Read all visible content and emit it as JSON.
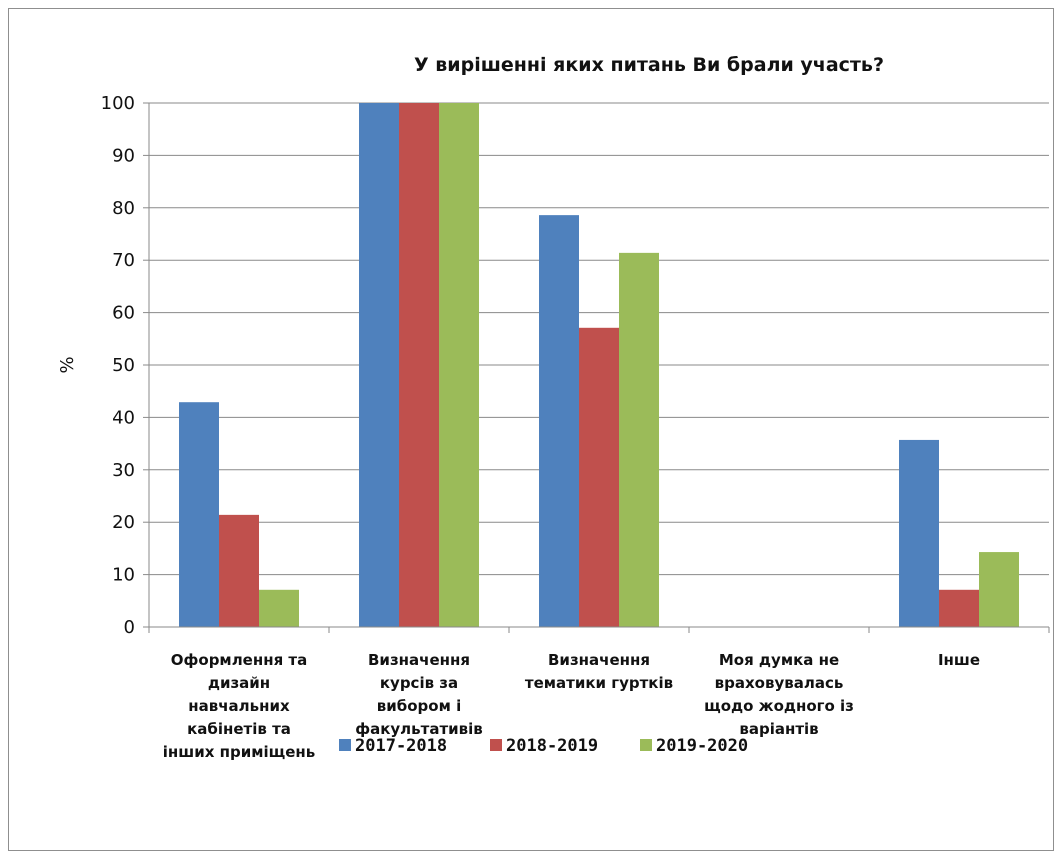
{
  "chart_data": {
    "type": "bar",
    "title": "У вирішенні яких питань  Ви брали участь?",
    "ylabel": "%",
    "xlabel": "",
    "ylim": [
      0,
      100
    ],
    "yticks": [
      0,
      10,
      20,
      30,
      40,
      50,
      60,
      70,
      80,
      90,
      100
    ],
    "grid": true,
    "legend_position": "bottom",
    "categories": [
      [
        "Оформлення та",
        "дизайн",
        "навчальних",
        "кабінетів та",
        "інших приміщень"
      ],
      [
        "Визначення",
        "курсів за",
        "вибором і",
        "факультативів"
      ],
      [
        "Визначення",
        "тематики гуртків"
      ],
      [
        "Моя думка не",
        "враховувалась",
        "щодо жодного із",
        "варіантів"
      ],
      [
        "Інше"
      ]
    ],
    "series": [
      {
        "name": "2017-2018",
        "color": "#4f81bd",
        "values": [
          42.9,
          100,
          78.6,
          0,
          35.7
        ]
      },
      {
        "name": "2018-2019",
        "color": "#c0504d",
        "values": [
          21.4,
          100,
          57.1,
          0,
          7.1
        ]
      },
      {
        "name": "2019-2020",
        "color": "#9bbb59",
        "values": [
          7.1,
          100,
          71.4,
          0,
          14.3
        ]
      }
    ]
  }
}
